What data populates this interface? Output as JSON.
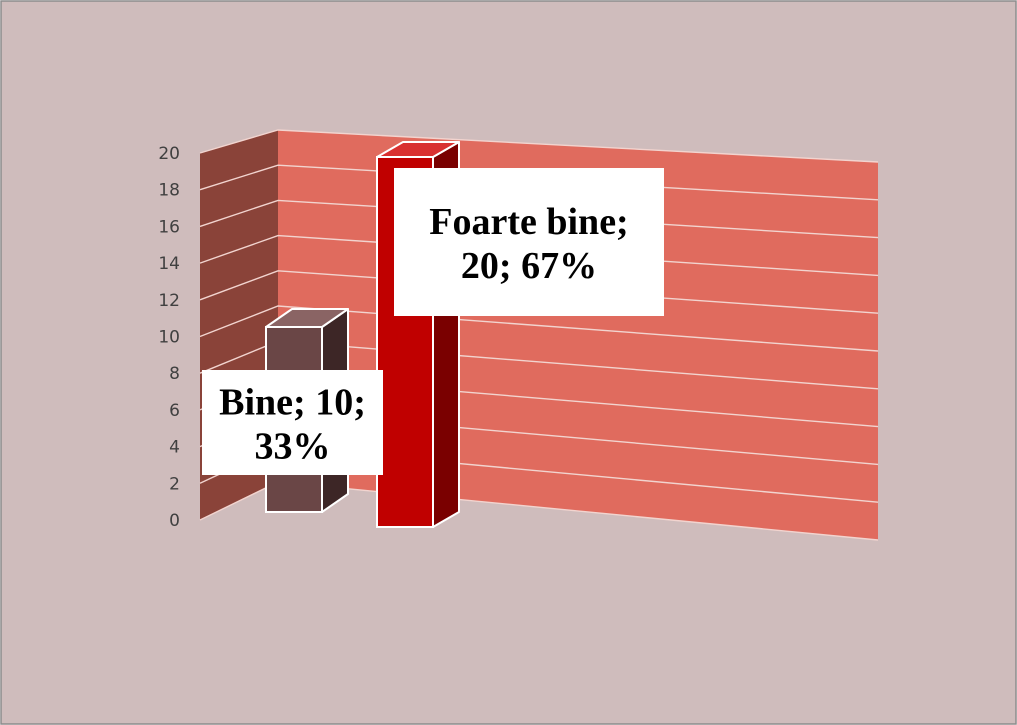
{
  "chart_data": {
    "type": "bar",
    "style": "3d-column",
    "categories": [
      "Bine",
      "Foarte bine"
    ],
    "values": [
      10,
      20
    ],
    "percents": [
      "33%",
      "67%"
    ],
    "data_labels": [
      {
        "lines": [
          "Bine; 10;",
          "33%"
        ]
      },
      {
        "lines": [
          "Foarte bine;",
          "20; 67%"
        ]
      }
    ],
    "ylim": [
      0,
      20
    ],
    "yticks": [
      "0",
      "2",
      "4",
      "6",
      "8",
      "10",
      "12",
      "14",
      "16",
      "18",
      "20"
    ],
    "grid": true,
    "legend": "none",
    "title": "",
    "xlabel": "",
    "ylabel": ""
  },
  "colors": {
    "page": "#cfbcbc",
    "back_wall": "#e06b5e",
    "side_wall": "#8a4339",
    "gridline": "#f2d4cf",
    "bar_bine_front": "#6a4646",
    "bar_bine_side": "#3d2626",
    "bar_bine_top": "#8a6464",
    "bar_foarte_front": "#c00000",
    "bar_foarte_side": "#7a0000",
    "bar_foarte_top": "#d93030"
  }
}
